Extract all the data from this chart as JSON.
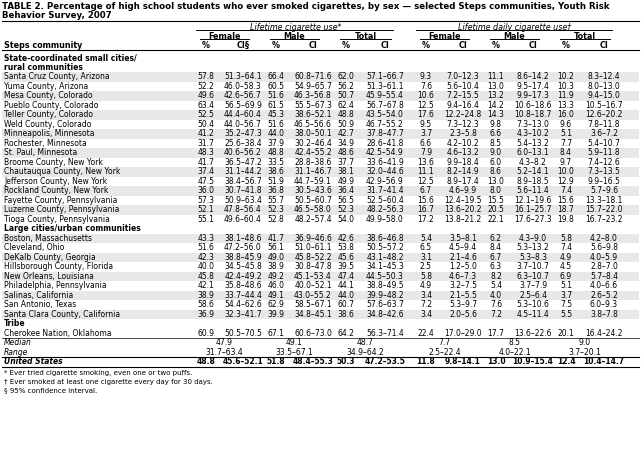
{
  "title_line1": "TABLE 2. Percentage of high school students who ever smoked cigarettes, by sex — selected Steps communities, Youth Risk",
  "title_line2": "Behavior Survey, 2007",
  "header1_left": "Lifetime cigarette use*",
  "header1_right": "Lifetime daily cigarette use†",
  "col_headers": [
    "Female",
    "Male",
    "Total",
    "Female",
    "Male",
    "Total"
  ],
  "subheaders": [
    "%",
    "CI§",
    "%",
    "CI",
    "%",
    "CI",
    "%",
    "CI",
    "%",
    "CI",
    "%",
    "CI"
  ],
  "section1_label": "State-coordinated small cities/",
  "section1_label2": "rural communities",
  "section2_label": "Large cities/urban communities",
  "section3_label": "Tribe",
  "rows": [
    [
      "Santa Cruz County, Arizona",
      "57.8",
      "51.3–64.1",
      "66.4",
      "60.8–71.6",
      "62.0",
      "57.1–66.7",
      "9.3",
      "7.0–12.3",
      "11.1",
      "8.6–14.2",
      "10.2",
      "8.3–12.4"
    ],
    [
      "Yuma County, Arizona",
      "52.2",
      "46.0–58.3",
      "60.5",
      "54.9–65.7",
      "56.2",
      "51.3–61.1",
      "7.6",
      "5.6–10.4",
      "13.0",
      "9.5–17.4",
      "10.3",
      "8.0–13.0"
    ],
    [
      "Mesa County, Colorado",
      "49.6",
      "42.6–56.7",
      "51.6",
      "46.3–56.8",
      "50.7",
      "45.9–55.4",
      "10.6",
      "7.2–15.5",
      "13.2",
      "9.9–17.3",
      "11.9",
      "9.4–15.0"
    ],
    [
      "Pueblo County, Colorado",
      "63.4",
      "56.5–69.9",
      "61.5",
      "55.5–67.3",
      "62.4",
      "56.7–67.8",
      "12.5",
      "9.4–16.4",
      "14.2",
      "10.6–18.6",
      "13.3",
      "10.5–16.7"
    ],
    [
      "Teller County, Colorado",
      "52.5",
      "44.4–60.4",
      "45.3",
      "38.6–52.1",
      "48.8",
      "43.5–54.0",
      "17.6",
      "12.2–24.8",
      "14.3",
      "10.8–18.7",
      "16.0",
      "12.6–20.2"
    ],
    [
      "Weld County, Colorado",
      "50.4",
      "44.0–56.7",
      "51.6",
      "46.5–56.6",
      "50.9",
      "46.7–55.2",
      "9.5",
      "7.3–12.3",
      "9.8",
      "7.3–13.0",
      "9.6",
      "7.8–11.8"
    ],
    [
      "Minneapolis, Minnesota",
      "41.2",
      "35.2–47.3",
      "44.0",
      "38.0–50.1",
      "42.7",
      "37.8–47.7",
      "3.7",
      "2.3–5.8",
      "6.6",
      "4.3–10.2",
      "5.1",
      "3.6–7.2"
    ],
    [
      "Rochester, Minnesota",
      "31.7",
      "25.6–38.4",
      "37.9",
      "30.2–46.4",
      "34.9",
      "28.6–41.8",
      "6.6",
      "4.2–10.2",
      "8.5",
      "5.4–13.2",
      "7.7",
      "5.4–10.7"
    ],
    [
      "St. Paul, Minnesota",
      "48.3",
      "40.6–56.2",
      "48.8",
      "42.4–55.2",
      "48.6",
      "42.5–54.9",
      "7.9",
      "4.6–13.2",
      "9.0",
      "6.0–13.1",
      "8.4",
      "5.9–11.8"
    ],
    [
      "Broome County, New York",
      "41.7",
      "36.5–47.2",
      "33.5",
      "28.8–38.6",
      "37.7",
      "33.6–41.9",
      "13.6",
      "9.9–18.4",
      "6.0",
      "4.3–8.2",
      "9.7",
      "7.4–12.6"
    ],
    [
      "Chautauqua County, New York",
      "37.4",
      "31.1–44.2",
      "38.6",
      "31.1–46.7",
      "38.1",
      "32.0–44.6",
      "11.1",
      "8.2–14.9",
      "8.6",
      "5.2–14.1",
      "10.0",
      "7.3–13.5"
    ],
    [
      "Jefferson County, New York",
      "47.5",
      "38.4–56.7",
      "51.9",
      "44.7–59.1",
      "49.9",
      "42.9–56.9",
      "12.5",
      "8.9–17.4",
      "13.0",
      "8.9–18.5",
      "12.9",
      "9.9–16.5"
    ],
    [
      "Rockland County, New York",
      "36.0",
      "30.7–41.8",
      "36.8",
      "30.5–43.6",
      "36.4",
      "31.7–41.4",
      "6.7",
      "4.6–9.9",
      "8.0",
      "5.6–11.4",
      "7.4",
      "5.7–9.6"
    ],
    [
      "Fayette County, Pennsylvania",
      "57.3",
      "50.9–63.4",
      "55.7",
      "50.5–60.7",
      "56.5",
      "52.5–60.4",
      "15.6",
      "12.4–19.5",
      "15.5",
      "12.1–19.6",
      "15.6",
      "13.3–18.1"
    ],
    [
      "Luzerne County, Pennsylvania",
      "52.1",
      "47.8–56.4",
      "52.3",
      "46.5–58.0",
      "52.3",
      "48.2–56.3",
      "16.7",
      "13.6–20.2",
      "20.5",
      "16.1–25.7",
      "18.7",
      "15.7–22.0"
    ],
    [
      "Tioga County, Pennsylvania",
      "55.1",
      "49.6–60.4",
      "52.8",
      "48.2–57.4",
      "54.0",
      "49.9–58.0",
      "17.2",
      "13.8–21.2",
      "22.1",
      "17.6–27.3",
      "19.8",
      "16.7–23.2"
    ],
    [
      "Boston, Massachusetts",
      "43.3",
      "38.1–48.6",
      "41.7",
      "36.9–46.6",
      "42.6",
      "38.6–46.8",
      "5.4",
      "3.5–8.1",
      "6.2",
      "4.3–9.0",
      "5.8",
      "4.2–8.0"
    ],
    [
      "Cleveland, Ohio",
      "51.6",
      "47.2–56.0",
      "56.1",
      "51.0–61.1",
      "53.8",
      "50.5–57.2",
      "6.5",
      "4.5–9.4",
      "8.4",
      "5.3–13.2",
      "7.4",
      "5.6–9.8"
    ],
    [
      "DeKalb County, Georgia",
      "42.3",
      "38.8–45.9",
      "49.0",
      "45.8–52.2",
      "45.6",
      "43.1–48.2",
      "3.1",
      "2.1–4.6",
      "6.7",
      "5.3–8.3",
      "4.9",
      "4.0–5.9"
    ],
    [
      "Hillsborough County, Florida",
      "40.0",
      "34.5–45.8",
      "38.9",
      "30.8–47.8",
      "39.5",
      "34.1–45.3",
      "2.5",
      "1.2–5.0",
      "6.3",
      "3.7–10.7",
      "4.5",
      "2.8–7.0"
    ],
    [
      "New Orleans, Louisiana",
      "45.8",
      "42.4–49.2",
      "49.2",
      "45.1–53.4",
      "47.4",
      "44.5–50.3",
      "5.8",
      "4.6–7.3",
      "8.2",
      "6.3–10.7",
      "6.9",
      "5.7–8.4"
    ],
    [
      "Philadelphia, Pennsylvania",
      "42.1",
      "35.8–48.6",
      "46.0",
      "40.0–52.1",
      "44.1",
      "38.8–49.5",
      "4.9",
      "3.2–7.5",
      "5.4",
      "3.7–7.9",
      "5.1",
      "4.0–6.6"
    ],
    [
      "Salinas, California",
      "38.9",
      "33.7–44.4",
      "49.1",
      "43.0–55.2",
      "44.0",
      "39.9–48.2",
      "3.4",
      "2.1–5.5",
      "4.0",
      "2.5–6.4",
      "3.7",
      "2.6–5.2"
    ],
    [
      "San Antonio, Texas",
      "58.6",
      "54.4–62.6",
      "62.9",
      "58.5–67.1",
      "60.7",
      "57.6–63.7",
      "7.2",
      "5.3–9.7",
      "7.6",
      "5.3–10.6",
      "7.5",
      "6.0–9.3"
    ],
    [
      "Santa Clara County, California",
      "36.9",
      "32.3–41.7",
      "39.9",
      "34.8–45.1",
      "38.6",
      "34.8–42.6",
      "3.4",
      "2.0–5.6",
      "7.2",
      "4.5–11.4",
      "5.5",
      "3.8–7.8"
    ],
    [
      "Cherokee Nation, Oklahoma",
      "60.9",
      "50.5–70.5",
      "67.1",
      "60.6–73.0",
      "64.2",
      "56.3–71.4",
      "22.4",
      "17.0–29.0",
      "17.7",
      "13.6–22.6",
      "20.1",
      "16.4–24.2"
    ]
  ],
  "median_vals": [
    "47.9",
    "49.1",
    "48.7",
    "7.7",
    "8.5",
    "9.0"
  ],
  "range_vals": [
    "31.7–63.4",
    "33.5–67.1",
    "34.9–64.2",
    "2.5–22.4",
    "4.0–22.1",
    "3.7–20.1"
  ],
  "us_row": [
    "48.8",
    "45.6–52.1",
    "51.8",
    "48.4–55.3",
    "50.3",
    "47.2–53.5",
    "11.8",
    "9.8–14.1",
    "13.0",
    "10.9–15.4",
    "12.4",
    "10.4–14.7"
  ],
  "footnotes": [
    "* Ever tried cigarette smoking, even one or two puffs.",
    "† Ever smoked at least one cigarette every day for 30 days.",
    "§ 95% confidence interval."
  ]
}
